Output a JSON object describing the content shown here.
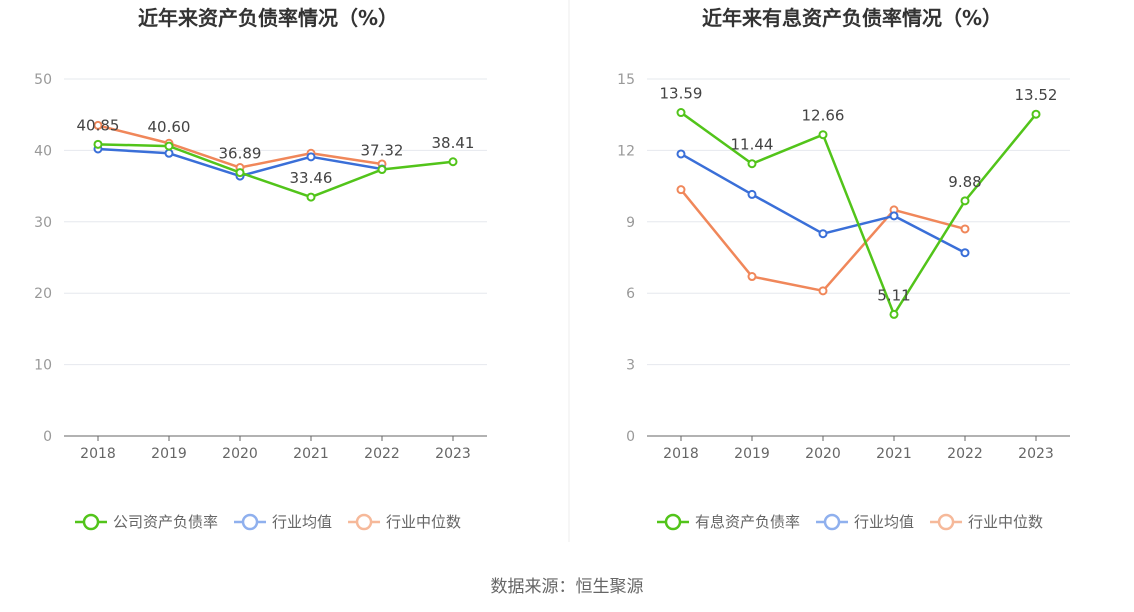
{
  "source": "数据来源：恒生聚源",
  "chart_data": [
    {
      "type": "line",
      "title": "近年来资产负债率情况（%）",
      "x": [
        "2018",
        "2019",
        "2020",
        "2021",
        "2022",
        "2023"
      ],
      "ylim": [
        0,
        50
      ],
      "yticks": [
        0,
        10,
        20,
        30,
        40,
        50
      ],
      "grid": true,
      "legend_position": "bottom",
      "series": [
        {
          "name": "公司资产负债率",
          "color": "#52c41a",
          "values": [
            40.85,
            40.6,
            36.89,
            33.46,
            37.32,
            38.41
          ],
          "labels": [
            "40.85",
            "40.60",
            "36.89",
            "33.46",
            "37.32",
            "38.41"
          ]
        },
        {
          "name": "行业均值",
          "color": "#3a6fd8",
          "values": [
            40.2,
            39.6,
            36.4,
            39.1,
            37.4,
            null
          ]
        },
        {
          "name": "行业中位数",
          "color": "#f0875a",
          "values": [
            43.5,
            41.0,
            37.6,
            39.6,
            38.1,
            null
          ]
        }
      ]
    },
    {
      "type": "line",
      "title": "近年来有息资产负债率情况（%）",
      "x": [
        "2018",
        "2019",
        "2020",
        "2021",
        "2022",
        "2023"
      ],
      "ylim": [
        0,
        15
      ],
      "yticks": [
        0,
        3,
        6,
        9,
        12,
        15
      ],
      "grid": true,
      "legend_position": "bottom",
      "series": [
        {
          "name": "有息资产负债率",
          "color": "#52c41a",
          "values": [
            13.59,
            11.44,
            12.66,
            5.11,
            9.88,
            13.52
          ],
          "labels": [
            "13.59",
            "11.44",
            "12.66",
            "5.11",
            "9.88",
            "13.52"
          ]
        },
        {
          "name": "行业均值",
          "color": "#3a6fd8",
          "values": [
            11.85,
            10.15,
            8.5,
            9.25,
            7.7,
            null
          ]
        },
        {
          "name": "行业中位数",
          "color": "#f0875a",
          "values": [
            10.35,
            6.7,
            6.1,
            9.5,
            8.7,
            null
          ]
        }
      ]
    }
  ]
}
